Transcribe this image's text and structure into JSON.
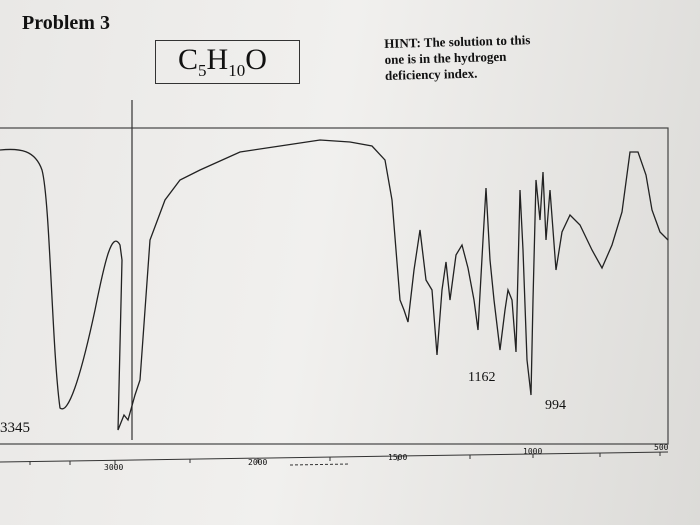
{
  "header": {
    "title": "Problem 3"
  },
  "formula": {
    "parts": [
      "C",
      "5",
      "H",
      "10",
      "O"
    ]
  },
  "hint": {
    "lines": [
      "HINT: The solution to this",
      "one is in the hydrogen",
      "deficiency index."
    ]
  },
  "axis": {
    "labels": [
      "3000",
      "2000",
      "1500",
      "1000",
      "500"
    ]
  },
  "peaks": [
    "1162",
    "994",
    "3345"
  ]
}
